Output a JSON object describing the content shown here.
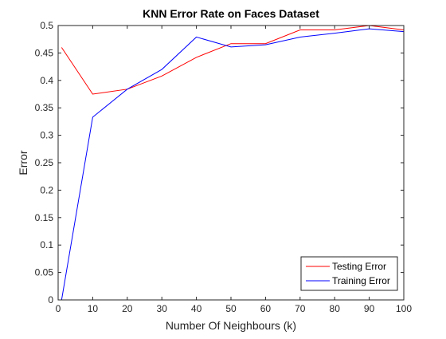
{
  "chart_data": {
    "type": "line",
    "title": "KNN Error Rate on Faces Dataset",
    "xlabel": "Number Of Neighbours (k)",
    "ylabel": "Error",
    "xlim": [
      0,
      100
    ],
    "ylim": [
      0,
      0.5
    ],
    "xticks": [
      0,
      10,
      20,
      30,
      40,
      50,
      60,
      70,
      80,
      90,
      100
    ],
    "xtick_labels": [
      "0",
      "10",
      "20",
      "30",
      "40",
      "50",
      "60",
      "70",
      "80",
      "90",
      "100"
    ],
    "yticks": [
      0,
      0.05,
      0.1,
      0.15,
      0.2,
      0.25,
      0.3,
      0.35,
      0.4,
      0.45,
      0.5
    ],
    "ytick_labels": [
      "0",
      "0.05",
      "0.1",
      "0.15",
      "0.2",
      "0.25",
      "0.3",
      "0.35",
      "0.4",
      "0.45",
      "0.5"
    ],
    "grid": false,
    "legend_position": "bottom-right",
    "x": [
      1,
      10,
      20,
      30,
      40,
      50,
      60,
      70,
      80,
      90,
      100
    ],
    "series": [
      {
        "name": "Testing Error",
        "color": "#ff0000",
        "values": [
          0.46,
          0.375,
          0.384,
          0.408,
          0.442,
          0.467,
          0.467,
          0.492,
          0.492,
          0.5,
          0.492
        ]
      },
      {
        "name": "Training Error",
        "color": "#0000ff",
        "values": [
          0.0,
          0.333,
          0.384,
          0.42,
          0.479,
          0.461,
          0.465,
          0.479,
          0.486,
          0.494,
          0.489
        ]
      }
    ]
  }
}
